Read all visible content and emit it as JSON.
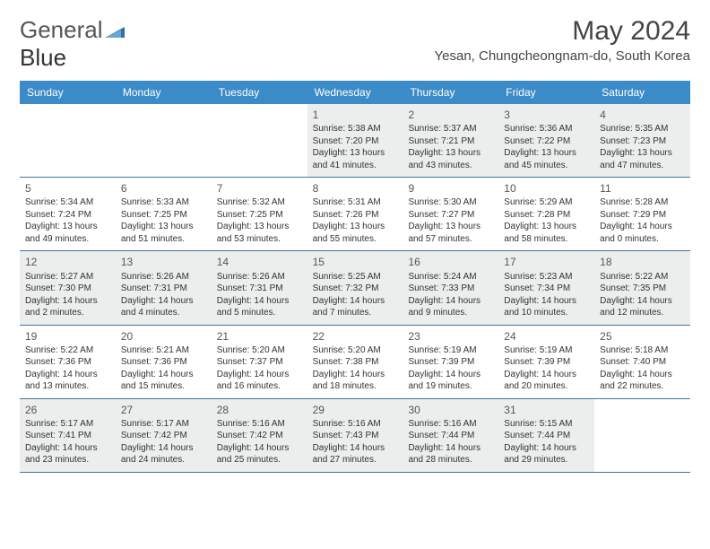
{
  "brand": {
    "name_part1": "General",
    "name_part2": "Blue"
  },
  "title": "May 2024",
  "location": "Yesan, Chungcheongnam-do, South Korea",
  "colors": {
    "header_bg": "#3b8bc8",
    "header_text": "#ffffff",
    "row_divider": "#3b78a8",
    "alt_cell_bg": "#eceded",
    "text": "#333333",
    "title_text": "#444444",
    "logo_text": "#555555",
    "logo_accent": "#2f6fa8",
    "background": "#ffffff"
  },
  "typography": {
    "title_fontsize": 30,
    "location_fontsize": 15,
    "weekday_fontsize": 12,
    "daynum_fontsize": 12,
    "cell_fontsize": 10,
    "logo_fontsize": 26
  },
  "weekdays": [
    "Sunday",
    "Monday",
    "Tuesday",
    "Wednesday",
    "Thursday",
    "Friday",
    "Saturday"
  ],
  "weeks": [
    [
      {
        "num": "",
        "lines": []
      },
      {
        "num": "",
        "lines": []
      },
      {
        "num": "",
        "lines": []
      },
      {
        "num": "1",
        "lines": [
          "Sunrise: 5:38 AM",
          "Sunset: 7:20 PM",
          "Daylight: 13 hours",
          "and 41 minutes."
        ]
      },
      {
        "num": "2",
        "lines": [
          "Sunrise: 5:37 AM",
          "Sunset: 7:21 PM",
          "Daylight: 13 hours",
          "and 43 minutes."
        ]
      },
      {
        "num": "3",
        "lines": [
          "Sunrise: 5:36 AM",
          "Sunset: 7:22 PM",
          "Daylight: 13 hours",
          "and 45 minutes."
        ]
      },
      {
        "num": "4",
        "lines": [
          "Sunrise: 5:35 AM",
          "Sunset: 7:23 PM",
          "Daylight: 13 hours",
          "and 47 minutes."
        ]
      }
    ],
    [
      {
        "num": "5",
        "lines": [
          "Sunrise: 5:34 AM",
          "Sunset: 7:24 PM",
          "Daylight: 13 hours",
          "and 49 minutes."
        ]
      },
      {
        "num": "6",
        "lines": [
          "Sunrise: 5:33 AM",
          "Sunset: 7:25 PM",
          "Daylight: 13 hours",
          "and 51 minutes."
        ]
      },
      {
        "num": "7",
        "lines": [
          "Sunrise: 5:32 AM",
          "Sunset: 7:25 PM",
          "Daylight: 13 hours",
          "and 53 minutes."
        ]
      },
      {
        "num": "8",
        "lines": [
          "Sunrise: 5:31 AM",
          "Sunset: 7:26 PM",
          "Daylight: 13 hours",
          "and 55 minutes."
        ]
      },
      {
        "num": "9",
        "lines": [
          "Sunrise: 5:30 AM",
          "Sunset: 7:27 PM",
          "Daylight: 13 hours",
          "and 57 minutes."
        ]
      },
      {
        "num": "10",
        "lines": [
          "Sunrise: 5:29 AM",
          "Sunset: 7:28 PM",
          "Daylight: 13 hours",
          "and 58 minutes."
        ]
      },
      {
        "num": "11",
        "lines": [
          "Sunrise: 5:28 AM",
          "Sunset: 7:29 PM",
          "Daylight: 14 hours",
          "and 0 minutes."
        ]
      }
    ],
    [
      {
        "num": "12",
        "lines": [
          "Sunrise: 5:27 AM",
          "Sunset: 7:30 PM",
          "Daylight: 14 hours",
          "and 2 minutes."
        ]
      },
      {
        "num": "13",
        "lines": [
          "Sunrise: 5:26 AM",
          "Sunset: 7:31 PM",
          "Daylight: 14 hours",
          "and 4 minutes."
        ]
      },
      {
        "num": "14",
        "lines": [
          "Sunrise: 5:26 AM",
          "Sunset: 7:31 PM",
          "Daylight: 14 hours",
          "and 5 minutes."
        ]
      },
      {
        "num": "15",
        "lines": [
          "Sunrise: 5:25 AM",
          "Sunset: 7:32 PM",
          "Daylight: 14 hours",
          "and 7 minutes."
        ]
      },
      {
        "num": "16",
        "lines": [
          "Sunrise: 5:24 AM",
          "Sunset: 7:33 PM",
          "Daylight: 14 hours",
          "and 9 minutes."
        ]
      },
      {
        "num": "17",
        "lines": [
          "Sunrise: 5:23 AM",
          "Sunset: 7:34 PM",
          "Daylight: 14 hours",
          "and 10 minutes."
        ]
      },
      {
        "num": "18",
        "lines": [
          "Sunrise: 5:22 AM",
          "Sunset: 7:35 PM",
          "Daylight: 14 hours",
          "and 12 minutes."
        ]
      }
    ],
    [
      {
        "num": "19",
        "lines": [
          "Sunrise: 5:22 AM",
          "Sunset: 7:36 PM",
          "Daylight: 14 hours",
          "and 13 minutes."
        ]
      },
      {
        "num": "20",
        "lines": [
          "Sunrise: 5:21 AM",
          "Sunset: 7:36 PM",
          "Daylight: 14 hours",
          "and 15 minutes."
        ]
      },
      {
        "num": "21",
        "lines": [
          "Sunrise: 5:20 AM",
          "Sunset: 7:37 PM",
          "Daylight: 14 hours",
          "and 16 minutes."
        ]
      },
      {
        "num": "22",
        "lines": [
          "Sunrise: 5:20 AM",
          "Sunset: 7:38 PM",
          "Daylight: 14 hours",
          "and 18 minutes."
        ]
      },
      {
        "num": "23",
        "lines": [
          "Sunrise: 5:19 AM",
          "Sunset: 7:39 PM",
          "Daylight: 14 hours",
          "and 19 minutes."
        ]
      },
      {
        "num": "24",
        "lines": [
          "Sunrise: 5:19 AM",
          "Sunset: 7:39 PM",
          "Daylight: 14 hours",
          "and 20 minutes."
        ]
      },
      {
        "num": "25",
        "lines": [
          "Sunrise: 5:18 AM",
          "Sunset: 7:40 PM",
          "Daylight: 14 hours",
          "and 22 minutes."
        ]
      }
    ],
    [
      {
        "num": "26",
        "lines": [
          "Sunrise: 5:17 AM",
          "Sunset: 7:41 PM",
          "Daylight: 14 hours",
          "and 23 minutes."
        ]
      },
      {
        "num": "27",
        "lines": [
          "Sunrise: 5:17 AM",
          "Sunset: 7:42 PM",
          "Daylight: 14 hours",
          "and 24 minutes."
        ]
      },
      {
        "num": "28",
        "lines": [
          "Sunrise: 5:16 AM",
          "Sunset: 7:42 PM",
          "Daylight: 14 hours",
          "and 25 minutes."
        ]
      },
      {
        "num": "29",
        "lines": [
          "Sunrise: 5:16 AM",
          "Sunset: 7:43 PM",
          "Daylight: 14 hours",
          "and 27 minutes."
        ]
      },
      {
        "num": "30",
        "lines": [
          "Sunrise: 5:16 AM",
          "Sunset: 7:44 PM",
          "Daylight: 14 hours",
          "and 28 minutes."
        ]
      },
      {
        "num": "31",
        "lines": [
          "Sunrise: 5:15 AM",
          "Sunset: 7:44 PM",
          "Daylight: 14 hours",
          "and 29 minutes."
        ]
      },
      {
        "num": "",
        "lines": []
      }
    ]
  ]
}
